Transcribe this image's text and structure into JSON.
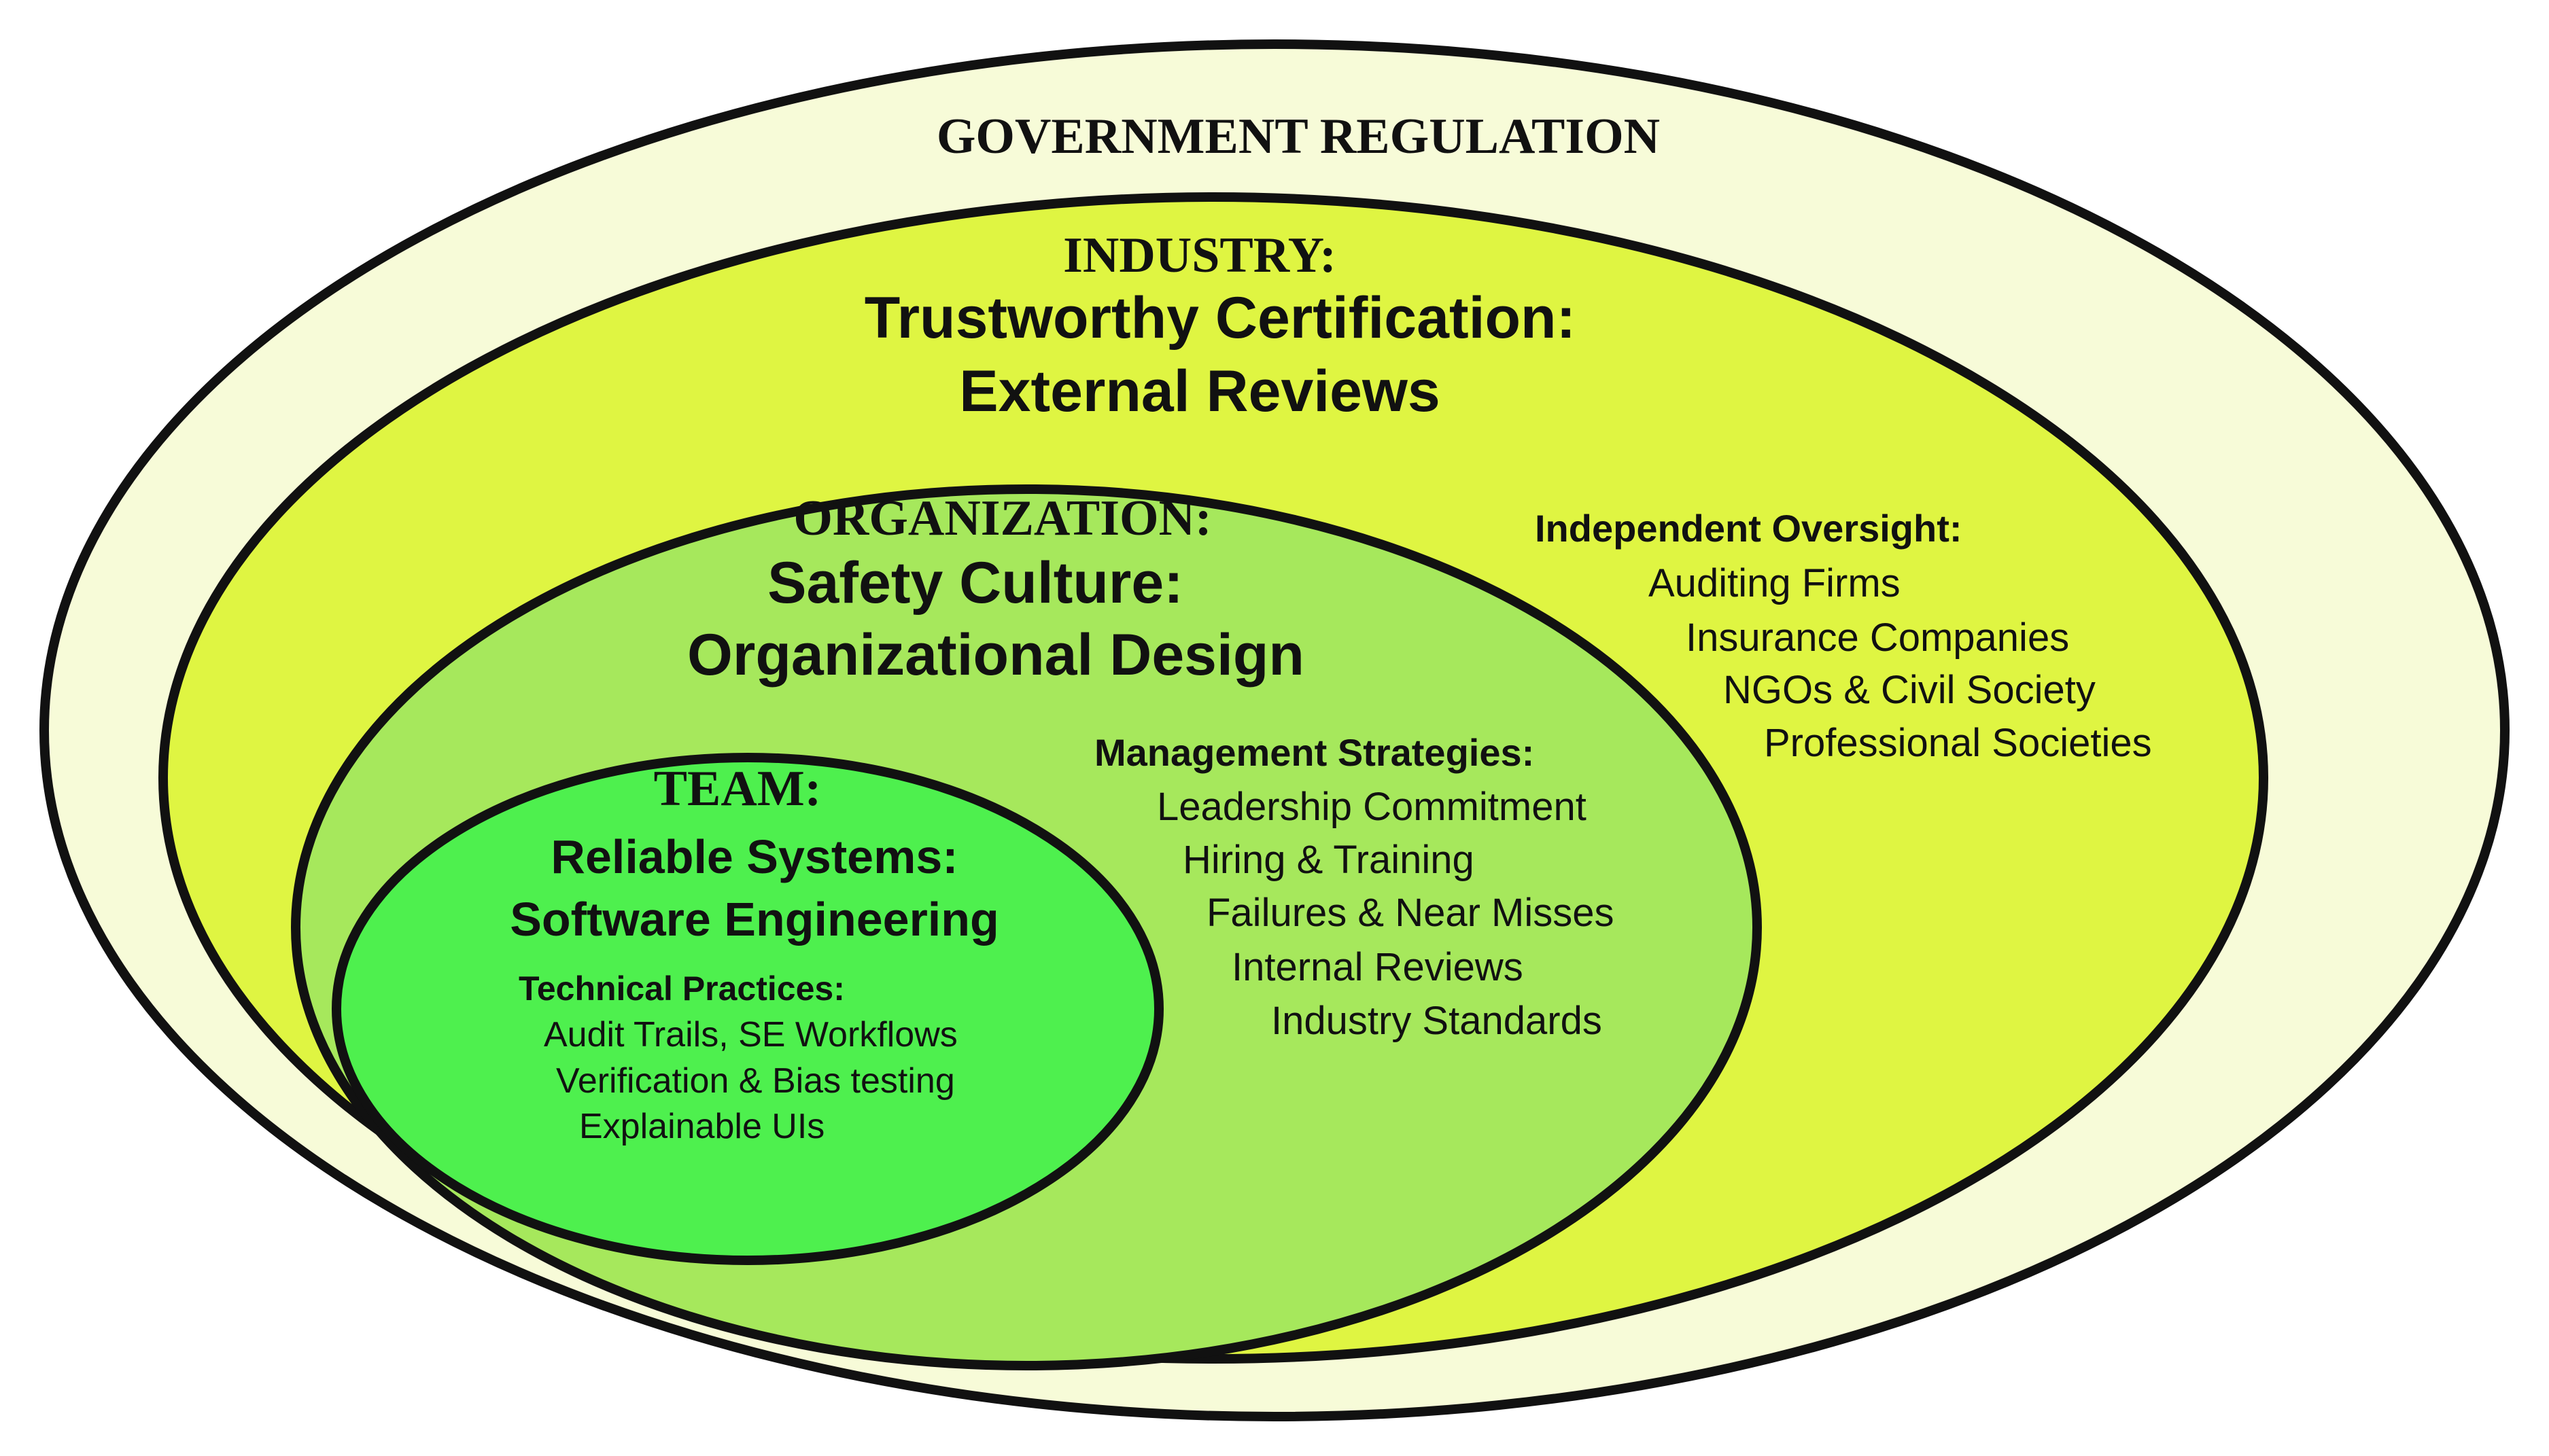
{
  "government": {
    "heading": "GOVERNMENT REGULATION"
  },
  "industry": {
    "heading": "INDUSTRY:",
    "title_line1": "Trustworthy Certification:",
    "title_line2": "External Reviews",
    "list_heading": "Independent Oversight:",
    "items": [
      "Auditing Firms",
      "Insurance Companies",
      "NGOs & Civil Society",
      "Professional Societies"
    ]
  },
  "organization": {
    "heading": "ORGANIZATION:",
    "title_line1": "Safety Culture:",
    "title_line2": "Organizational Design",
    "list_heading": "Management Strategies:",
    "items": [
      "Leadership Commitment",
      "Hiring & Training",
      "Failures & Near Misses",
      "Internal Reviews",
      "Industry Standards"
    ]
  },
  "team": {
    "heading": "TEAM:",
    "title_line1": "Reliable Systems:",
    "title_line2": "Software Engineering",
    "list_heading": "Technical Practices:",
    "items": [
      "Audit Trails, SE Workflows",
      "Verification & Bias testing",
      "Explainable UIs"
    ]
  },
  "colors": {
    "government_fill": "#f7fbd8",
    "industry_fill": "#dff542",
    "organization_fill": "#a6e85c",
    "team_fill": "#4ef04e",
    "outline": "#111111"
  }
}
